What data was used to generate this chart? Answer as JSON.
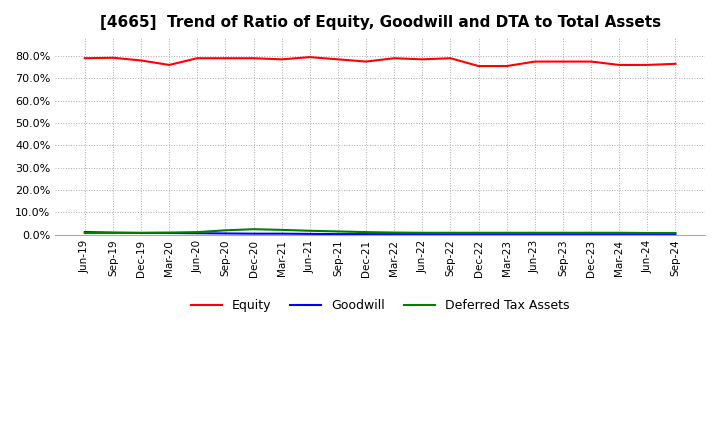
{
  "title": "[4665]  Trend of Ratio of Equity, Goodwill and DTA to Total Assets",
  "title_fontsize": 11,
  "x_labels": [
    "Jun-19",
    "Sep-19",
    "Dec-19",
    "Mar-20",
    "Jun-20",
    "Sep-20",
    "Dec-20",
    "Mar-21",
    "Jun-21",
    "Sep-21",
    "Dec-21",
    "Mar-22",
    "Jun-22",
    "Sep-22",
    "Dec-22",
    "Mar-23",
    "Jun-23",
    "Sep-23",
    "Dec-23",
    "Mar-24",
    "Jun-24",
    "Sep-24"
  ],
  "equity": [
    79.0,
    79.2,
    78.0,
    76.0,
    79.0,
    79.0,
    79.0,
    78.5,
    79.5,
    78.5,
    77.5,
    79.0,
    78.5,
    79.0,
    75.5,
    75.5,
    77.5,
    77.5,
    77.5,
    76.0,
    76.0,
    76.5
  ],
  "goodwill": [
    1.2,
    1.0,
    0.8,
    0.8,
    0.7,
    0.6,
    0.5,
    0.5,
    0.4,
    0.3,
    0.3,
    0.3,
    0.3,
    0.2,
    0.2,
    0.2,
    0.2,
    0.2,
    0.2,
    0.2,
    0.2,
    0.1
  ],
  "dta": [
    0.8,
    0.8,
    0.9,
    1.0,
    1.2,
    2.0,
    2.5,
    2.2,
    1.8,
    1.5,
    1.2,
    1.0,
    0.9,
    0.9,
    0.9,
    0.9,
    0.9,
    0.9,
    0.9,
    0.9,
    0.8,
    0.8
  ],
  "equity_color": "#FF0000",
  "goodwill_color": "#0000FF",
  "dta_color": "#008000",
  "ylim": [
    0,
    88
  ],
  "yticks": [
    0,
    10,
    20,
    30,
    40,
    50,
    60,
    70,
    80
  ],
  "grid_color": "#AAAAAA",
  "background_color": "#FFFFFF",
  "legend_labels": [
    "Equity",
    "Goodwill",
    "Deferred Tax Assets"
  ]
}
